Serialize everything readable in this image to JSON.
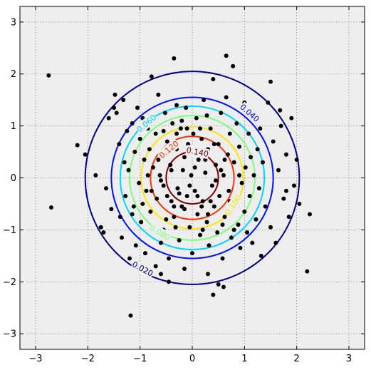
{
  "chart_data": {
    "type": "scatter",
    "title": "",
    "xlabel": "",
    "ylabel": "",
    "xlim": [
      -3.3,
      3.3
    ],
    "ylim": [
      -3.3,
      3.3
    ],
    "grid": true,
    "x_ticks": [
      {
        "value": -3,
        "label": "−3"
      },
      {
        "value": -2,
        "label": "−2"
      },
      {
        "value": -1,
        "label": "−1"
      },
      {
        "value": 0,
        "label": "0"
      },
      {
        "value": 1,
        "label": "1"
      },
      {
        "value": 2,
        "label": "2"
      },
      {
        "value": 3,
        "label": "3"
      }
    ],
    "y_ticks": [
      {
        "value": -3,
        "label": "−3"
      },
      {
        "value": -2,
        "label": "−2"
      },
      {
        "value": -1,
        "label": "−1"
      },
      {
        "value": 0,
        "label": "0"
      },
      {
        "value": 1,
        "label": "1"
      },
      {
        "value": 2,
        "label": "2"
      },
      {
        "value": 3,
        "label": "3"
      }
    ],
    "contours": [
      {
        "level": 0.02,
        "label": "0.020",
        "radius": 2.05,
        "color": "#000080",
        "label_x": -0.95,
        "label_y": -1.75
      },
      {
        "level": 0.04,
        "label": "0.040",
        "radius": 1.55,
        "color": "#0010ff",
        "label_x": 1.1,
        "label_y": 1.25
      },
      {
        "level": 0.06,
        "label": "0.060",
        "radius": 1.38,
        "color": "#00d4ff",
        "label_x": -0.88,
        "label_y": 1.05
      },
      {
        "level": 0.08,
        "label": "0.080",
        "radius": 1.2,
        "color": "#7cff7a",
        "label_x": -0.62,
        "label_y": -1.05
      },
      {
        "level": 0.1,
        "label": "0.100",
        "radius": 0.98,
        "color": "#ffe600",
        "label_x": 0.78,
        "label_y": -0.52
      },
      {
        "level": 0.12,
        "label": "0.120",
        "radius": 0.8,
        "color": "#ff3000",
        "label_x": -0.45,
        "label_y": 0.55
      },
      {
        "level": 0.14,
        "label": "0.140",
        "radius": 0.5,
        "color": "#800000",
        "label_x": 0.1,
        "label_y": 0.5
      }
    ],
    "points": [
      [
        -2.75,
        1.97
      ],
      [
        -2.7,
        -0.57
      ],
      [
        -2.2,
        0.63
      ],
      [
        -2.05,
        0.45
      ],
      [
        -1.85,
        0.05
      ],
      [
        -1.75,
        -0.95
      ],
      [
        -1.7,
        -1.05
      ],
      [
        -1.65,
        -0.2
      ],
      [
        -1.6,
        1.15
      ],
      [
        -1.55,
        -0.6
      ],
      [
        -1.5,
        1.35
      ],
      [
        -1.48,
        1.6
      ],
      [
        -1.45,
        1.25
      ],
      [
        -1.4,
        0.65
      ],
      [
        -1.38,
        -0.75
      ],
      [
        -1.35,
        -1.15
      ],
      [
        -1.32,
        1.5
      ],
      [
        -1.3,
        0.3
      ],
      [
        -1.28,
        -0.35
      ],
      [
        -1.25,
        0.9
      ],
      [
        -1.22,
        0.15
      ],
      [
        -1.2,
        -1.55
      ],
      [
        -1.18,
        -2.65
      ],
      [
        -1.15,
        1.05
      ],
      [
        -1.12,
        -0.55
      ],
      [
        -1.1,
        0.5
      ],
      [
        -1.08,
        -1.3
      ],
      [
        -1.05,
        1.35
      ],
      [
        -1.02,
        -0.1
      ],
      [
        -1.0,
        0.75
      ],
      [
        -0.98,
        -0.85
      ],
      [
        -0.95,
        1.15
      ],
      [
        -0.92,
        0.35
      ],
      [
        -0.9,
        -1.45
      ],
      [
        -0.88,
        -0.25
      ],
      [
        -0.85,
        0.95
      ],
      [
        -0.82,
        0.55
      ],
      [
        -0.8,
        -0.65
      ],
      [
        -0.78,
        1.95
      ],
      [
        -0.75,
        0.2
      ],
      [
        -0.72,
        -1.05
      ],
      [
        -0.7,
        0.85
      ],
      [
        -0.68,
        -0.4
      ],
      [
        -0.65,
        1.6
      ],
      [
        -0.62,
        0.05
      ],
      [
        -0.6,
        -1.25
      ],
      [
        -0.58,
        0.45
      ],
      [
        -0.55,
        -0.15
      ],
      [
        -0.52,
        1.25
      ],
      [
        -0.5,
        -0.8
      ],
      [
        -0.48,
        0.7
      ],
      [
        -0.45,
        -1.55
      ],
      [
        -0.42,
        0.25
      ],
      [
        -0.4,
        -0.45
      ],
      [
        -0.38,
        1.05
      ],
      [
        -0.35,
        2.3
      ],
      [
        -0.32,
        -0.95
      ],
      [
        -0.3,
        0.55
      ],
      [
        -0.28,
        -0.2
      ],
      [
        -0.25,
        -1.2
      ],
      [
        -0.22,
        0.95
      ],
      [
        -0.2,
        -0.55
      ],
      [
        -0.18,
        0.15
      ],
      [
        -0.15,
        -1.75
      ],
      [
        -0.12,
        1.35
      ],
      [
        -0.1,
        -0.35
      ],
      [
        -0.08,
        0.65
      ],
      [
        -0.05,
        -0.95
      ],
      [
        -0.02,
        0.05
      ],
      [
        0.0,
        -1.45
      ],
      [
        0.02,
        0.85
      ],
      [
        0.05,
        -0.25
      ],
      [
        0.08,
        1.15
      ],
      [
        0.1,
        -0.7
      ],
      [
        0.12,
        0.35
      ],
      [
        0.15,
        -1.1
      ],
      [
        0.18,
        0.75
      ],
      [
        0.2,
        -0.45
      ],
      [
        0.22,
        1.5
      ],
      [
        0.25,
        0.1
      ],
      [
        0.28,
        -0.85
      ],
      [
        0.3,
        0.55
      ],
      [
        0.32,
        -1.3
      ],
      [
        0.35,
        0.95
      ],
      [
        0.38,
        -0.15
      ],
      [
        0.4,
        1.9
      ],
      [
        0.42,
        -0.55
      ],
      [
        0.45,
        0.25
      ],
      [
        0.48,
        -1.05
      ],
      [
        0.5,
        0.65
      ],
      [
        0.52,
        -0.35
      ],
      [
        0.55,
        1.25
      ],
      [
        0.58,
        -1.55
      ],
      [
        0.6,
        0.05
      ],
      [
        0.62,
        -0.75
      ],
      [
        0.65,
        2.35
      ],
      [
        0.68,
        0.45
      ],
      [
        0.7,
        -0.25
      ],
      [
        0.72,
        0.85
      ],
      [
        0.75,
        -1.15
      ],
      [
        0.78,
        2.15
      ],
      [
        0.8,
        0.3
      ],
      [
        0.82,
        -0.55
      ],
      [
        0.85,
        1.05
      ],
      [
        0.88,
        -0.9
      ],
      [
        0.9,
        0.6
      ],
      [
        0.92,
        -1.35
      ],
      [
        0.95,
        -0.1
      ],
      [
        0.98,
        1.35
      ],
      [
        1.0,
        -0.65
      ],
      [
        1.02,
        0.2
      ],
      [
        1.05,
        -1.05
      ],
      [
        1.08,
        0.85
      ],
      [
        1.1,
        -0.35
      ],
      [
        1.12,
        0.4
      ],
      [
        1.15,
        -1.25
      ],
      [
        1.18,
        0.05
      ],
      [
        1.2,
        1.15
      ],
      [
        1.22,
        -0.8
      ],
      [
        1.25,
        0.55
      ],
      [
        1.28,
        -0.2
      ],
      [
        1.3,
        0.95
      ],
      [
        1.32,
        -1.5
      ],
      [
        1.35,
        0.3
      ],
      [
        1.4,
        -0.55
      ],
      [
        1.45,
        1.45
      ],
      [
        1.5,
        -0.95
      ],
      [
        1.55,
        0.7
      ],
      [
        1.6,
        -1.25
      ],
      [
        1.65,
        0.15
      ],
      [
        1.7,
        1.0
      ],
      [
        1.75,
        -0.4
      ],
      [
        1.8,
        0.45
      ],
      [
        1.85,
        -0.75
      ],
      [
        1.9,
        1.15
      ],
      [
        1.95,
        -0.15
      ],
      [
        2.0,
        0.35
      ],
      [
        2.05,
        -0.5
      ],
      [
        2.2,
        -1.8
      ],
      [
        2.25,
        -0.7
      ],
      [
        1.5,
        1.85
      ],
      [
        1.68,
        1.3
      ],
      [
        1.8,
        -0.25
      ],
      [
        -0.55,
        0.9
      ],
      [
        -0.35,
        -0.75
      ],
      [
        0.15,
        0.95
      ],
      [
        -0.15,
        0.4
      ],
      [
        0.35,
        -0.45
      ],
      [
        -0.25,
        -0.3
      ],
      [
        0.05,
        0.2
      ],
      [
        -0.05,
        -0.15
      ],
      [
        0.25,
        0.35
      ],
      [
        -0.4,
        0.15
      ],
      [
        0.45,
        -0.05
      ],
      [
        -0.15,
        -0.6
      ],
      [
        0.1,
        -0.35
      ],
      [
        -0.3,
        0.85
      ],
      [
        0.55,
        0.15
      ],
      [
        -0.6,
        -0.05
      ],
      [
        0.3,
        -0.7
      ],
      [
        0.62,
        0.35
      ],
      [
        -0.1,
        0.95
      ],
      [
        -0.48,
        -0.35
      ],
      [
        0.18,
        -0.55
      ],
      [
        -0.2,
        1.1
      ],
      [
        0.42,
        0.65
      ],
      [
        -0.65,
        0.35
      ],
      [
        0.72,
        -0.45
      ],
      [
        -0.35,
        -0.55
      ],
      [
        0.05,
        0.55
      ],
      [
        0.9,
        0.05
      ],
      [
        -0.78,
        -0.25
      ],
      [
        0.28,
        1.2
      ],
      [
        -0.55,
        -1.0
      ],
      [
        0.58,
        -0.9
      ],
      [
        -0.85,
        0.05
      ],
      [
        0.2,
        -1.0
      ],
      [
        -0.3,
        1.4
      ],
      [
        0.8,
        -1.0
      ],
      [
        -0.95,
        -0.5
      ],
      [
        1.0,
        1.45
      ],
      [
        -1.15,
        -0.7
      ],
      [
        0.65,
        1.55
      ],
      [
        -0.7,
        -1.7
      ],
      [
        0.3,
        -1.85
      ],
      [
        -0.45,
        -2.0
      ],
      [
        0.5,
        -2.05
      ],
      [
        0.4,
        -2.25
      ],
      [
        0.6,
        -2.1
      ],
      [
        -0.6,
        -1.85
      ]
    ]
  }
}
